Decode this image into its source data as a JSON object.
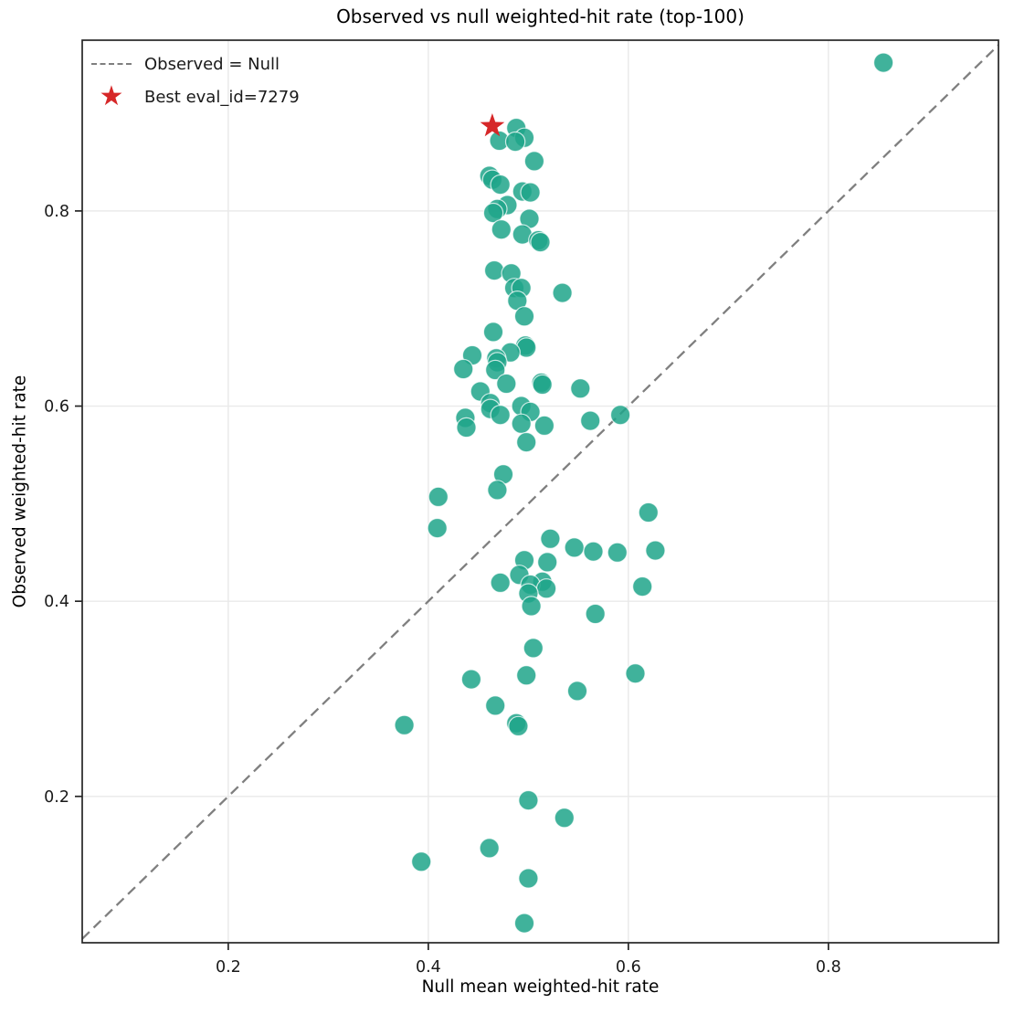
{
  "title": "Observed vs null weighted-hit rate (top-100)",
  "axes": {
    "xlabel": "Null mean weighted-hit rate",
    "ylabel": "Observed weighted-hit rate"
  },
  "legend": {
    "items": [
      {
        "marker": "dashed-line",
        "label": "Observed = Null"
      },
      {
        "marker": "star",
        "glyph": "★",
        "label": "Best eval_id=7279"
      }
    ]
  },
  "colors": {
    "point_fill": "#1fa58a",
    "point_opacity": 0.85,
    "point_edge": "#ffffff",
    "best_star": "#d62728",
    "identity_line": "#7f7f7f",
    "grid": "#e9e9e9",
    "spine": "#262626",
    "tick_text": "#1a1a1a"
  },
  "chart_data": {
    "type": "scatter",
    "title": "Observed vs null weighted-hit rate (top-100)",
    "xlabel": "Null mean weighted-hit rate",
    "ylabel": "Observed weighted-hit rate",
    "xlim": [
      0.054,
      0.97
    ],
    "ylim": [
      0.05,
      0.975
    ],
    "xticks": [
      0.2,
      0.4,
      0.6,
      0.8
    ],
    "yticks": [
      0.2,
      0.4,
      0.6,
      0.8
    ],
    "grid": true,
    "legend_position": "upper-left",
    "identity_line": {
      "label": "Observed = Null",
      "start": 0.054,
      "end": 0.97
    },
    "best_point": {
      "eval_id": 7279,
      "x": 0.464,
      "y": 0.887,
      "label": "Best eval_id=7279"
    },
    "points": [
      [
        0.855,
        0.952
      ],
      [
        0.488,
        0.885
      ],
      [
        0.496,
        0.875
      ],
      [
        0.471,
        0.872
      ],
      [
        0.487,
        0.871
      ],
      [
        0.506,
        0.851
      ],
      [
        0.461,
        0.836
      ],
      [
        0.464,
        0.832
      ],
      [
        0.472,
        0.827
      ],
      [
        0.494,
        0.82
      ],
      [
        0.502,
        0.819
      ],
      [
        0.479,
        0.806
      ],
      [
        0.469,
        0.802
      ],
      [
        0.465,
        0.798
      ],
      [
        0.501,
        0.792
      ],
      [
        0.473,
        0.781
      ],
      [
        0.494,
        0.776
      ],
      [
        0.51,
        0.77
      ],
      [
        0.512,
        0.768
      ],
      [
        0.466,
        0.739
      ],
      [
        0.483,
        0.736
      ],
      [
        0.486,
        0.721
      ],
      [
        0.493,
        0.721
      ],
      [
        0.534,
        0.716
      ],
      [
        0.489,
        0.708
      ],
      [
        0.496,
        0.692
      ],
      [
        0.465,
        0.676
      ],
      [
        0.497,
        0.662
      ],
      [
        0.498,
        0.66
      ],
      [
        0.482,
        0.655
      ],
      [
        0.444,
        0.652
      ],
      [
        0.468,
        0.649
      ],
      [
        0.469,
        0.645
      ],
      [
        0.435,
        0.638
      ],
      [
        0.467,
        0.637
      ],
      [
        0.478,
        0.623
      ],
      [
        0.513,
        0.624
      ],
      [
        0.514,
        0.622
      ],
      [
        0.552,
        0.618
      ],
      [
        0.452,
        0.615
      ],
      [
        0.462,
        0.603
      ],
      [
        0.493,
        0.6
      ],
      [
        0.462,
        0.597
      ],
      [
        0.502,
        0.594
      ],
      [
        0.472,
        0.591
      ],
      [
        0.592,
        0.591
      ],
      [
        0.437,
        0.588
      ],
      [
        0.562,
        0.585
      ],
      [
        0.493,
        0.582
      ],
      [
        0.516,
        0.58
      ],
      [
        0.438,
        0.578
      ],
      [
        0.498,
        0.563
      ],
      [
        0.475,
        0.53
      ],
      [
        0.469,
        0.514
      ],
      [
        0.41,
        0.507
      ],
      [
        0.62,
        0.491
      ],
      [
        0.409,
        0.475
      ],
      [
        0.522,
        0.464
      ],
      [
        0.546,
        0.455
      ],
      [
        0.627,
        0.452
      ],
      [
        0.565,
        0.451
      ],
      [
        0.589,
        0.45
      ],
      [
        0.496,
        0.442
      ],
      [
        0.519,
        0.44
      ],
      [
        0.491,
        0.427
      ],
      [
        0.514,
        0.42
      ],
      [
        0.472,
        0.419
      ],
      [
        0.502,
        0.417
      ],
      [
        0.518,
        0.413
      ],
      [
        0.614,
        0.415
      ],
      [
        0.5,
        0.408
      ],
      [
        0.503,
        0.395
      ],
      [
        0.567,
        0.387
      ],
      [
        0.505,
        0.352
      ],
      [
        0.607,
        0.326
      ],
      [
        0.498,
        0.324
      ],
      [
        0.443,
        0.32
      ],
      [
        0.549,
        0.308
      ],
      [
        0.467,
        0.293
      ],
      [
        0.488,
        0.275
      ],
      [
        0.49,
        0.272
      ],
      [
        0.376,
        0.273
      ],
      [
        0.5,
        0.196
      ],
      [
        0.536,
        0.178
      ],
      [
        0.461,
        0.147
      ],
      [
        0.393,
        0.133
      ],
      [
        0.5,
        0.116
      ],
      [
        0.496,
        0.07
      ]
    ]
  }
}
